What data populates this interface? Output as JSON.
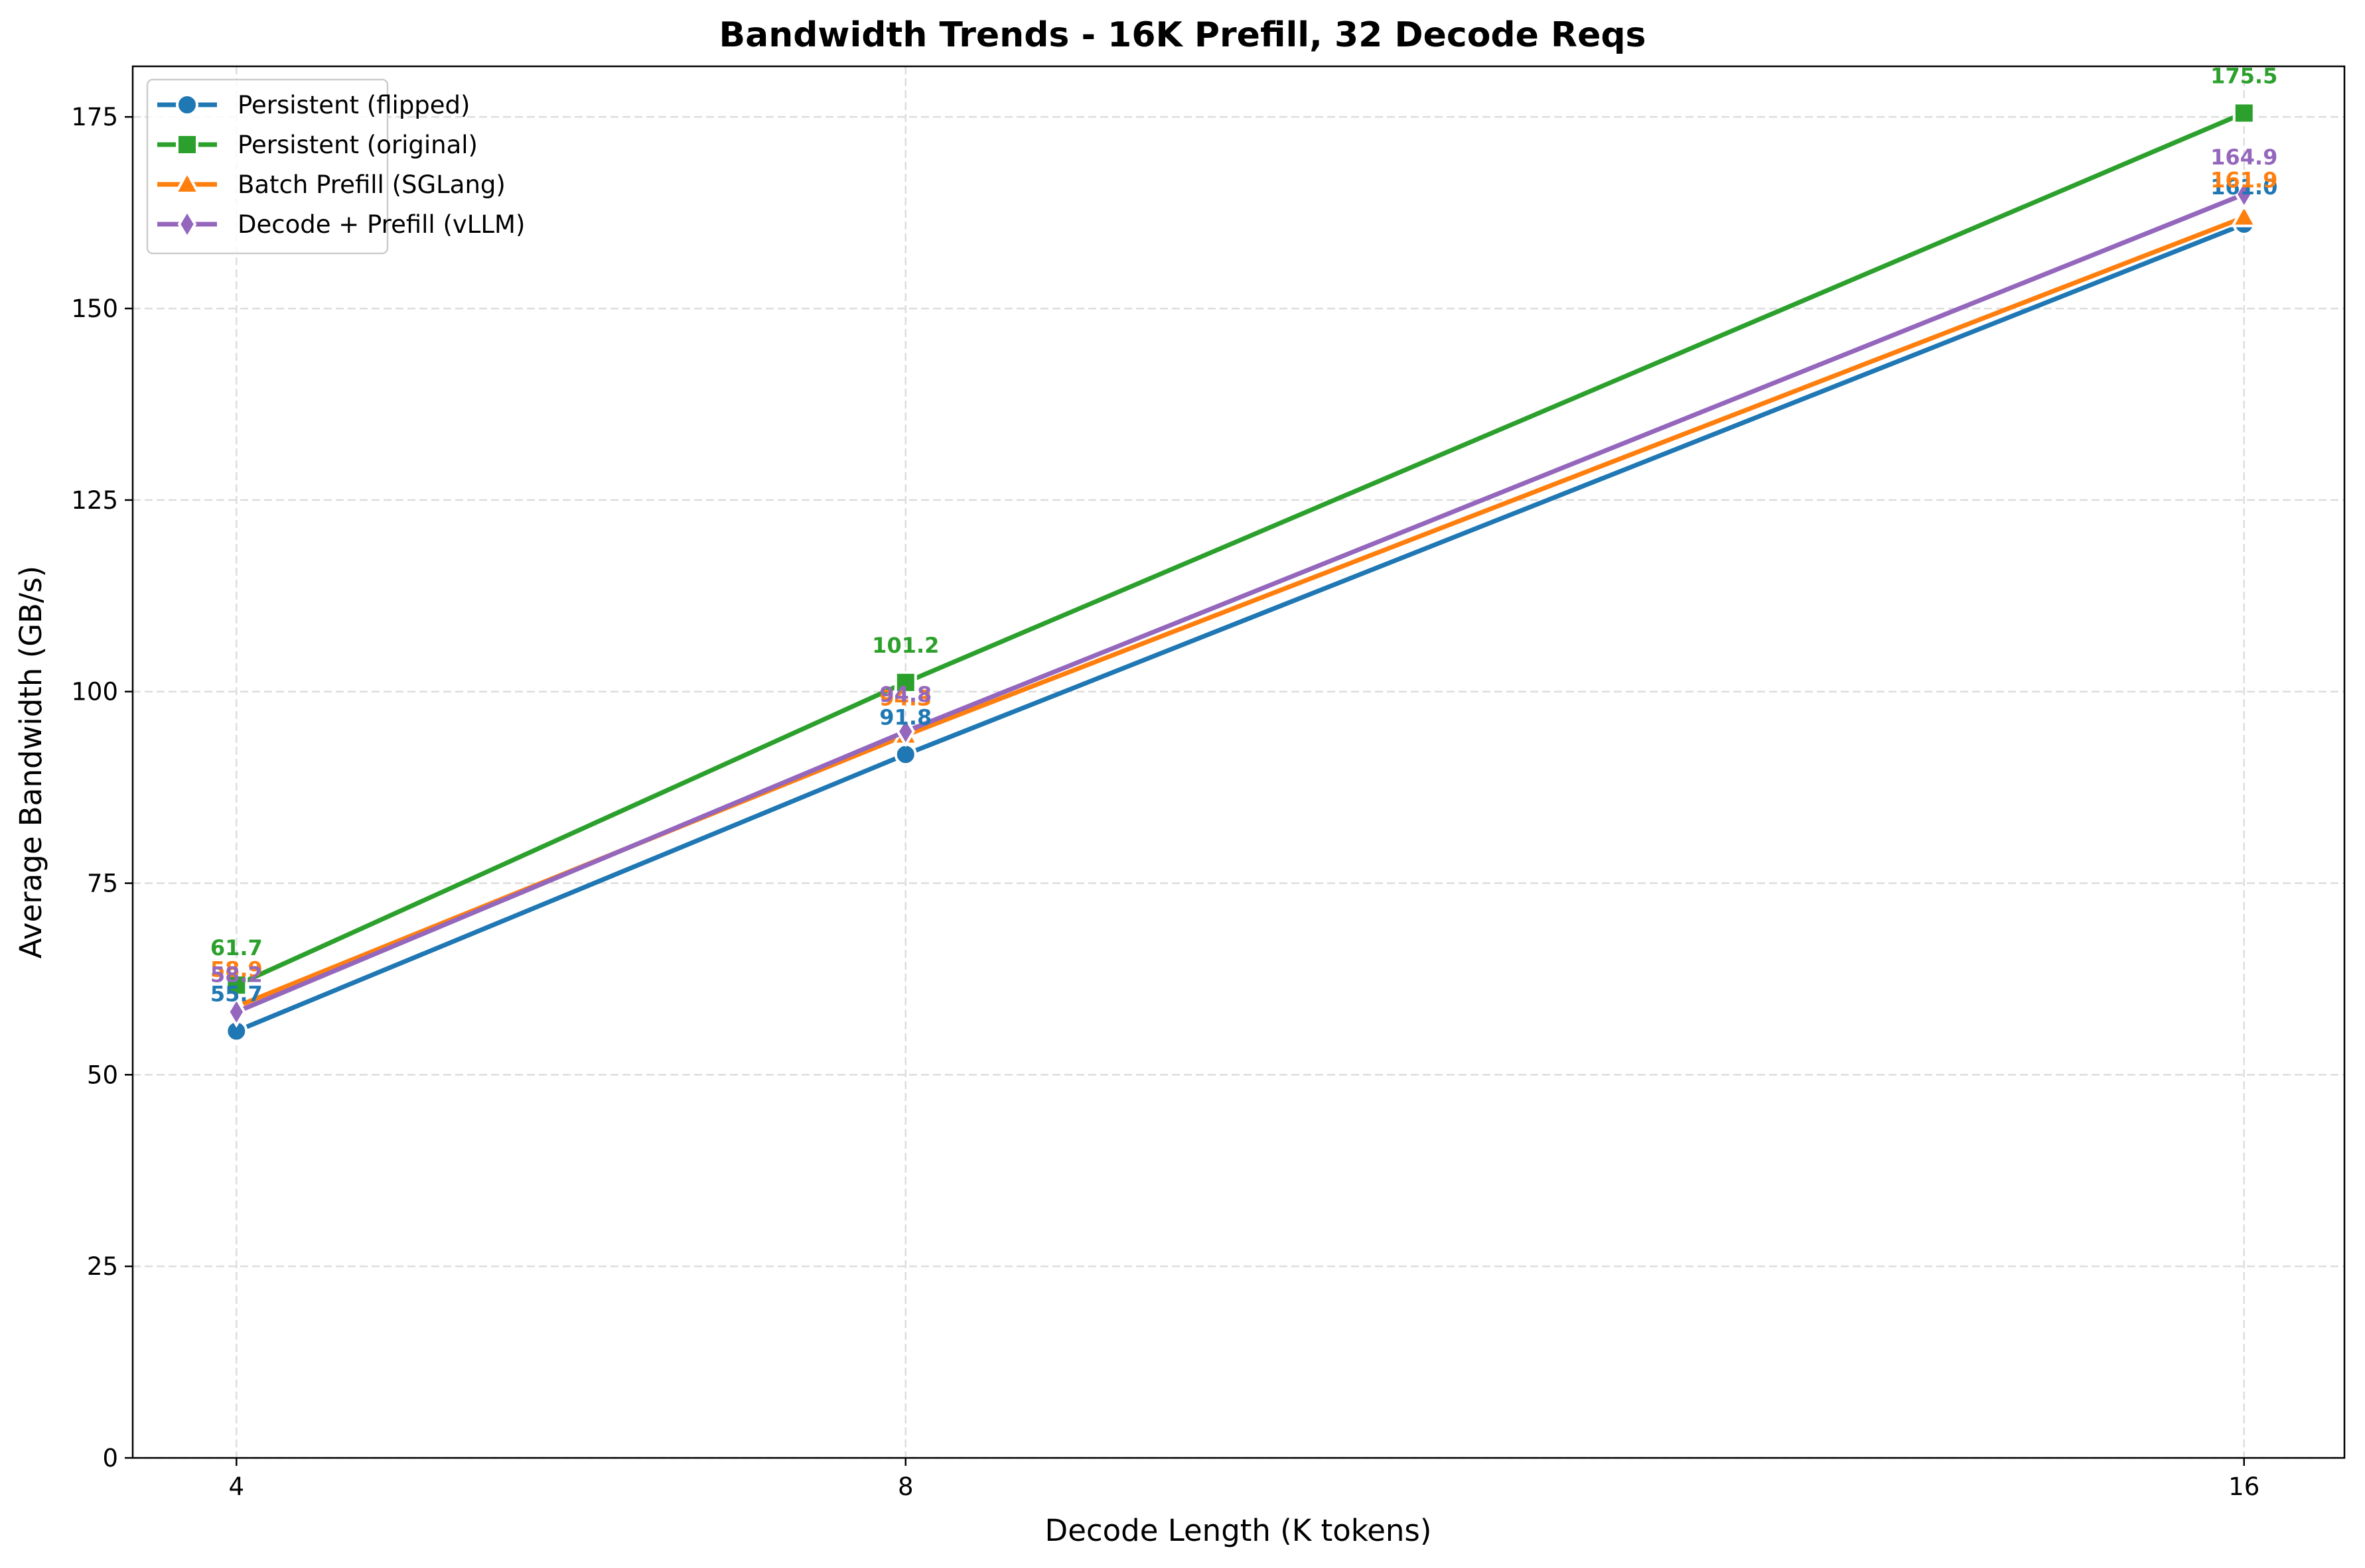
{
  "chart_data": {
    "type": "line",
    "title": "Bandwidth Trends - 16K Prefill, 32 Decode Reqs",
    "xlabel": "Decode Length (K tokens)",
    "ylabel": "Average Bandwidth (GB/s)",
    "x": [
      4,
      8,
      16
    ],
    "x_tick_labels": [
      "4",
      "8",
      "16"
    ],
    "xlim": [
      3.38,
      16.6
    ],
    "ylim": [
      0,
      181.6
    ],
    "y_ticks": [
      0,
      25,
      50,
      75,
      100,
      125,
      150,
      175
    ],
    "grid": true,
    "legend_position": "top-left",
    "series": [
      {
        "name": "Persistent (flipped)",
        "color": "#1f77b4",
        "marker": "circle",
        "values": [
          55.7,
          91.8,
          161.0
        ],
        "labels": [
          "55.7",
          "91.8",
          "161.0"
        ]
      },
      {
        "name": "Persistent (original)",
        "color": "#2ca02c",
        "marker": "square",
        "values": [
          61.7,
          101.2,
          175.5
        ],
        "labels": [
          "61.7",
          "101.2",
          "175.5"
        ]
      },
      {
        "name": "Batch Prefill (SGLang)",
        "color": "#ff7f0e",
        "marker": "triangle",
        "values": [
          58.9,
          94.3,
          161.9
        ],
        "labels": [
          "58.9",
          "94.3",
          "161.9"
        ]
      },
      {
        "name": "Decode + Prefill (vLLM)",
        "color": "#9467bd",
        "marker": "diamond",
        "values": [
          58.2,
          94.8,
          164.9
        ],
        "labels": [
          "58.2",
          "94.8",
          "164.9"
        ]
      }
    ]
  }
}
